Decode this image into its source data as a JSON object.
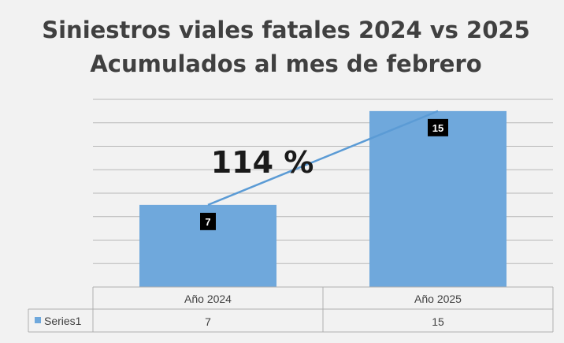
{
  "chart_data": {
    "type": "bar",
    "title": "Siniestros viales fatales 2024 vs 2025",
    "subtitle": "Acumulados al mes de febrero",
    "categories": [
      "Año 2024",
      "Año 2025"
    ],
    "series": [
      {
        "name": "Series1",
        "values": [
          7,
          15
        ]
      }
    ],
    "annotation": "114 %",
    "ylim": [
      0,
      16
    ],
    "grid": true,
    "data_table": true,
    "colors": {
      "bar": "#6fa8dc",
      "line": "#5b9bd5",
      "label_bg": "#000000"
    }
  }
}
